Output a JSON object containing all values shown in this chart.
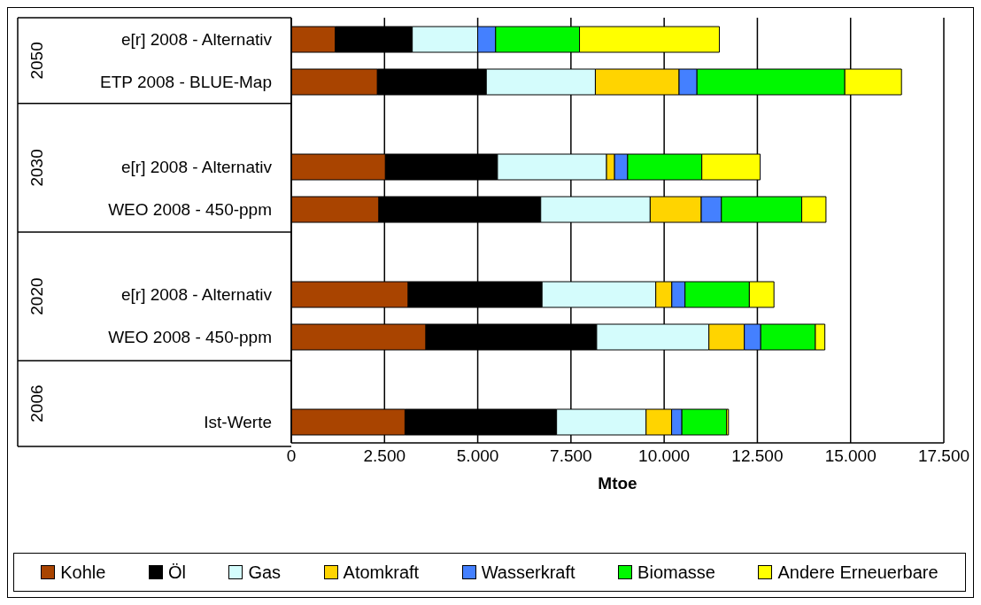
{
  "chart_data": {
    "type": "bar",
    "orientation": "horizontal",
    "stacked": true,
    "xlabel": "Mtoe",
    "categories": [
      "e[r] 2008 - Alternativ",
      "ETP 2008 - BLUE-Map",
      null,
      "e[r] 2008 - Alternativ",
      "WEO 2008 - 450-ppm",
      null,
      "e[r] 2008 - Alternativ",
      "WEO 2008 - 450-ppm",
      null,
      "Ist-Werte"
    ],
    "annotations": [
      "2050",
      "2030",
      "2020",
      "2006"
    ],
    "series": [
      {
        "name": "Kohle",
        "color": "#a94400",
        "values": [
          1180,
          2310,
          null,
          2525,
          2350,
          null,
          3135,
          3610,
          null,
          3050
        ]
      },
      {
        "name": "Öl",
        "color": "#000000",
        "values": [
          2065,
          2920,
          null,
          3005,
          4340,
          null,
          3590,
          4580,
          null,
          4065
        ]
      },
      {
        "name": "Gas",
        "color": "#d4fcfc",
        "values": [
          1755,
          2925,
          null,
          2925,
          2935,
          null,
          3050,
          3010,
          null,
          2400
        ]
      },
      {
        "name": "Atomkraft",
        "color": "#ffd400",
        "values": [
          0,
          2245,
          null,
          215,
          1370,
          null,
          430,
          950,
          null,
          685
        ]
      },
      {
        "name": "Wasserkraft",
        "color": "#4480ff",
        "values": [
          480,
          480,
          null,
          350,
          540,
          null,
          355,
          440,
          null,
          275
        ]
      },
      {
        "name": "Biomasse",
        "color": "#00f800",
        "values": [
          2250,
          3965,
          null,
          1990,
          2155,
          null,
          1725,
          1465,
          null,
          1200
        ]
      },
      {
        "name": "Andere Erneuerbare",
        "color": "#ffff00",
        "values": [
          3750,
          1520,
          null,
          1565,
          650,
          null,
          660,
          255,
          null,
          50
        ]
      }
    ],
    "xlim": [
      0,
      17500
    ],
    "xticks": [
      0,
      {
        "value": 2500,
        "label": "2.500"
      },
      {
        "value": 5000,
        "label": "5.000"
      },
      {
        "value": 7500,
        "label": "7.500"
      },
      {
        "value": 10000,
        "label": "10.000"
      },
      {
        "value": 12500,
        "label": "12.500"
      },
      {
        "value": 15000,
        "label": "15.000"
      },
      {
        "value": 17500,
        "label": "17.500"
      }
    ],
    "grid": "x",
    "legend": "bottom"
  }
}
